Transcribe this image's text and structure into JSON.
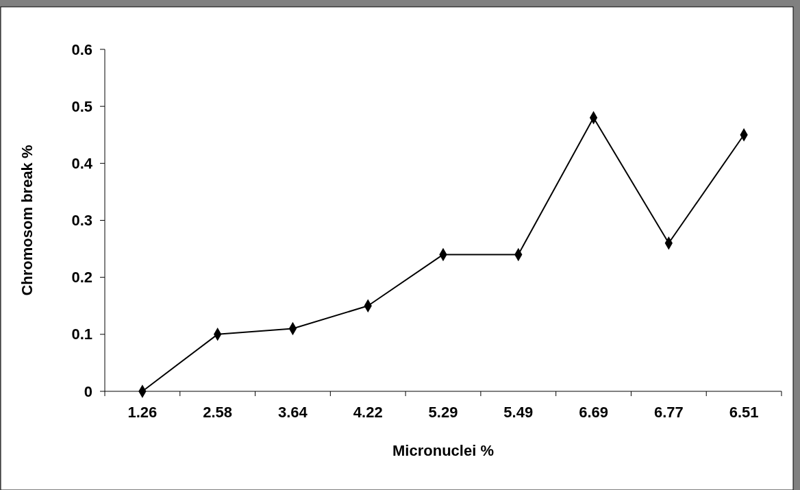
{
  "chart_data": {
    "type": "line",
    "xlabel": "Micronuclei %",
    "ylabel": "Chromosom break %",
    "categories": [
      "1.26",
      "2.58",
      "3.64",
      "4.22",
      "5.29",
      "5.49",
      "6.69",
      "6.77",
      "6.51"
    ],
    "series": [
      {
        "color": "#000000",
        "values": [
          0,
          0.1,
          0.11,
          0.15,
          0.24,
          0.24,
          0.48,
          0.26,
          0.45
        ]
      }
    ],
    "ylim": [
      0,
      0.6
    ],
    "yticks": [
      0,
      0.1,
      0.2,
      0.3,
      0.4,
      0.5,
      0.6
    ],
    "grid": false,
    "marker": "diamond",
    "line_style": "solid"
  }
}
